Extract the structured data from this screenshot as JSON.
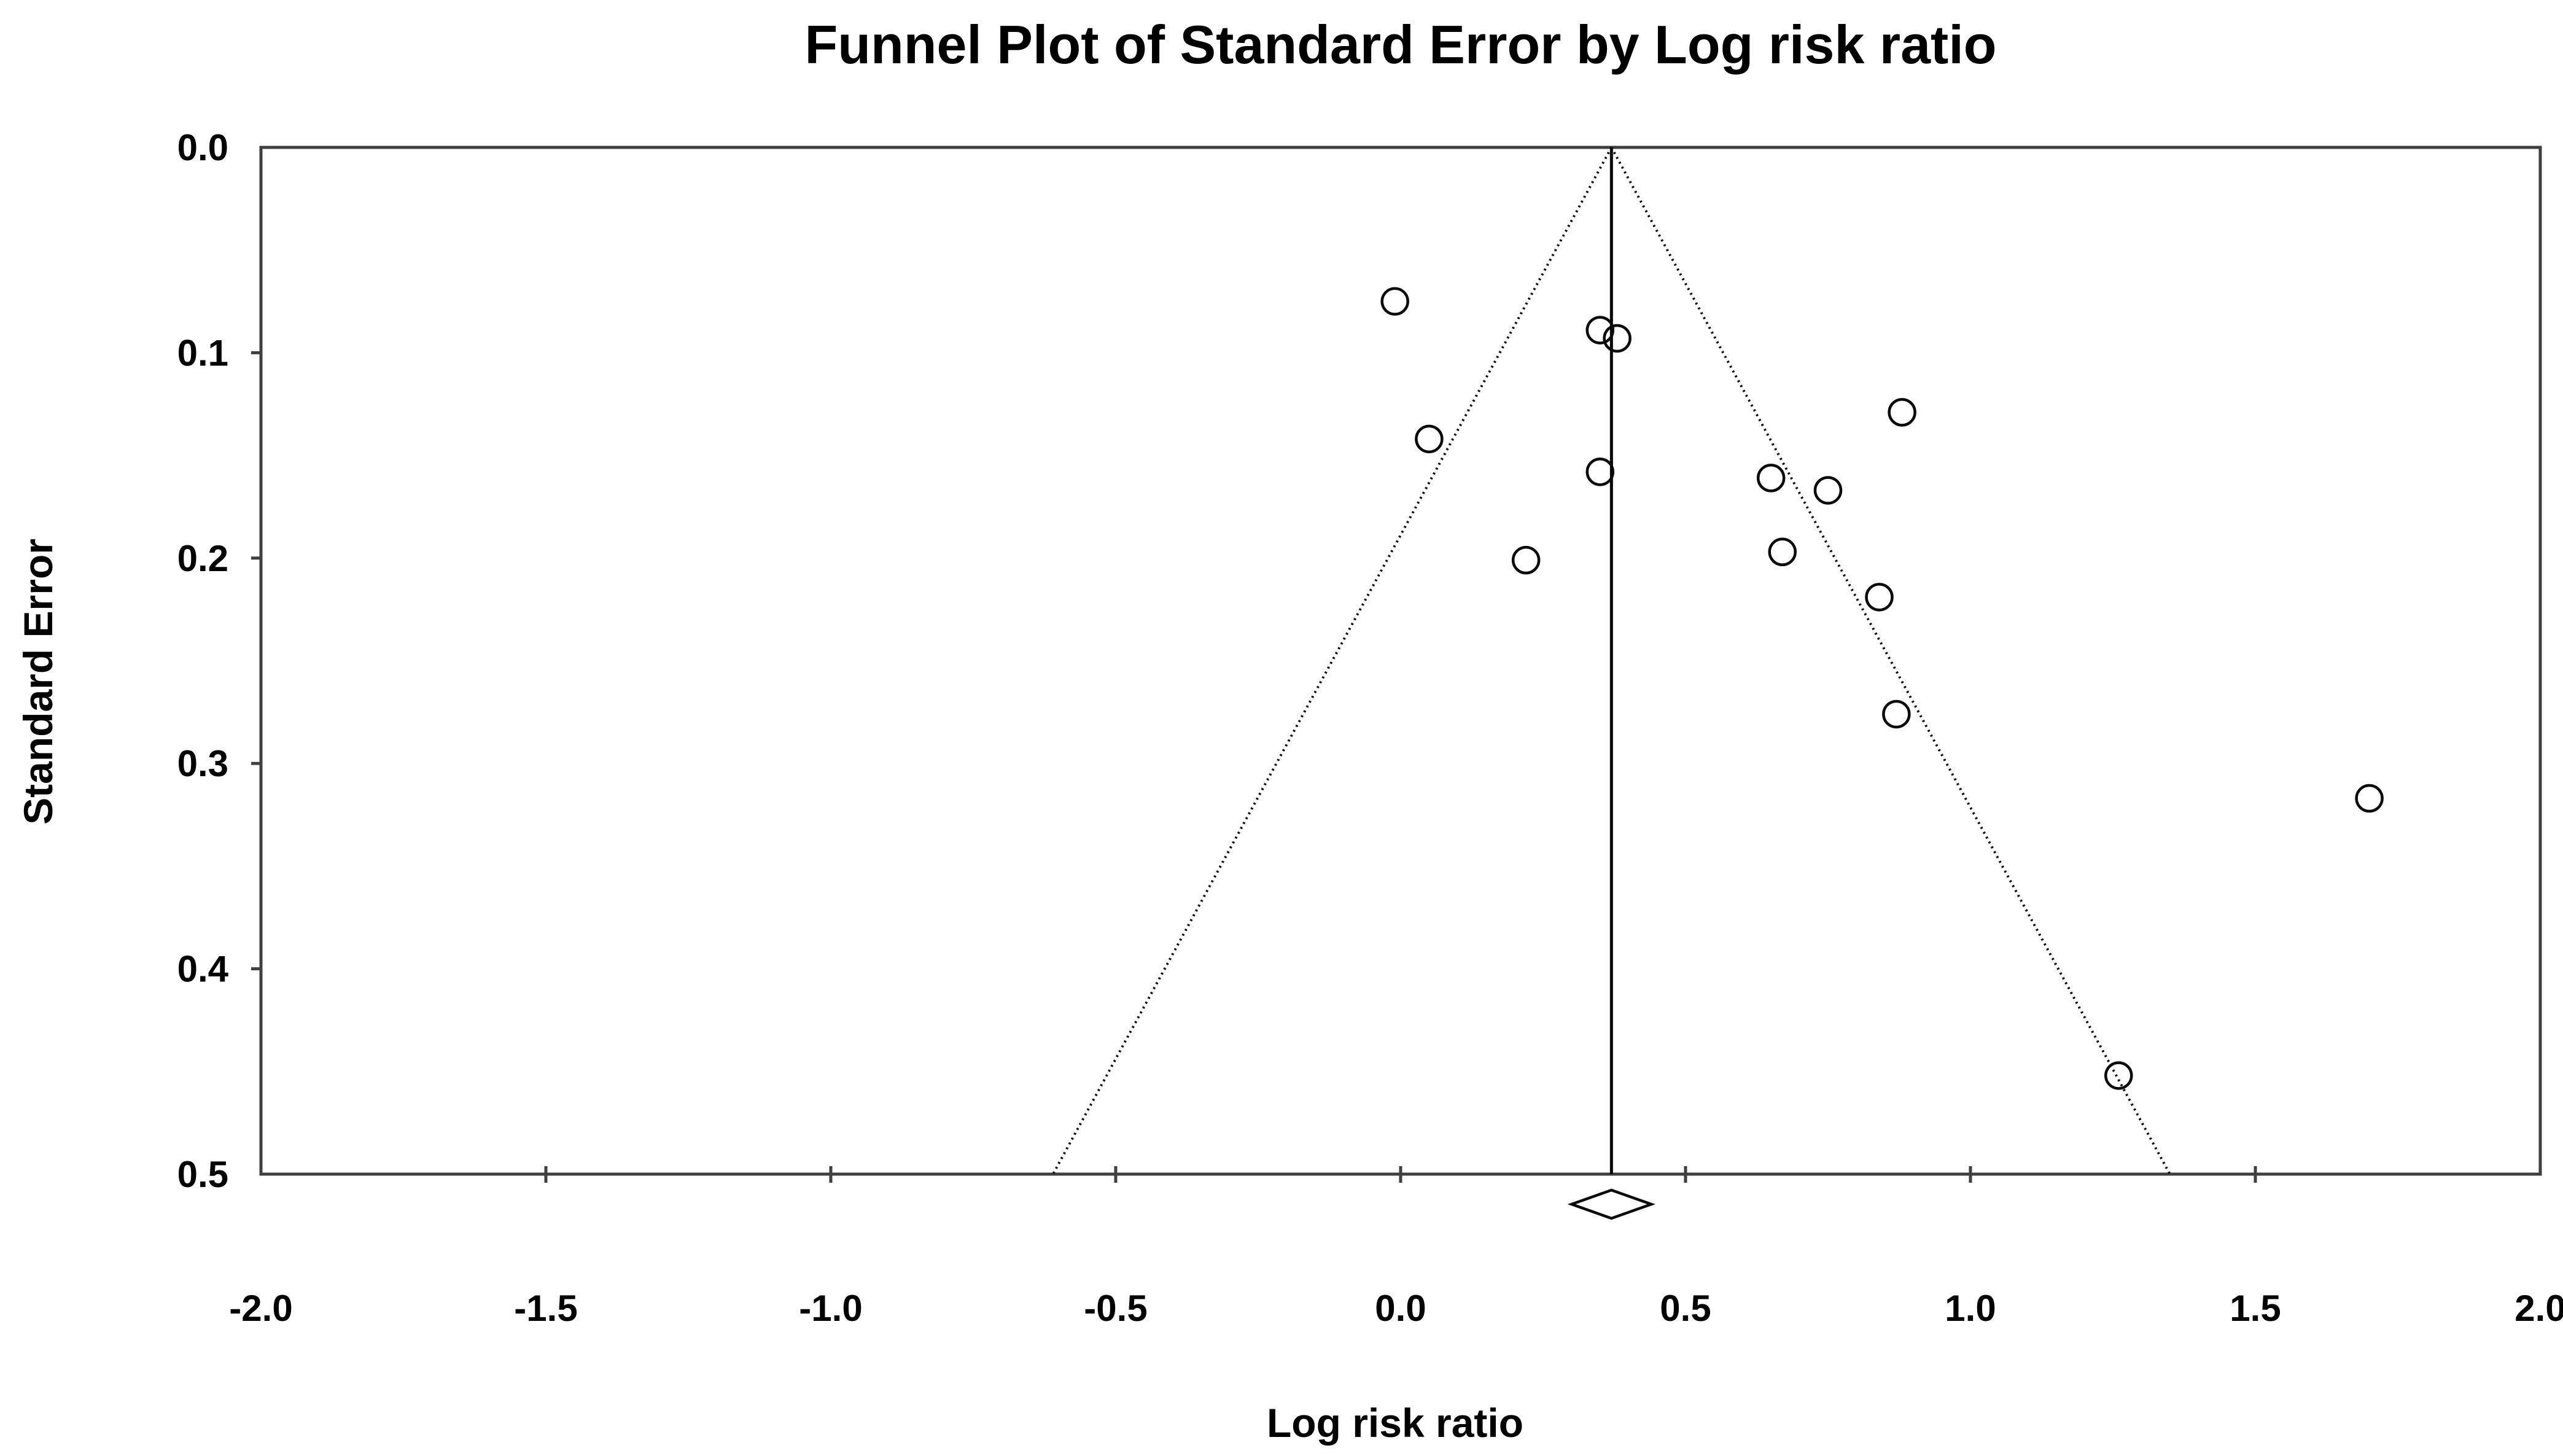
{
  "title": "Funnel Plot of Standard Error by Log risk ratio",
  "colors": {
    "background": "#ffffff",
    "frame": "#3f3f3f",
    "ink": "#0a0a0a"
  },
  "chart_data": {
    "type": "scatter",
    "subtype": "funnel-plot",
    "title": "Funnel Plot of Standard Error by Log risk ratio",
    "xlabel": "Log risk ratio",
    "ylabel": "Standard Error",
    "xlim": [
      -2.0,
      2.0
    ],
    "ylim": [
      0.0,
      0.5
    ],
    "y_inverted": true,
    "grid": false,
    "legend": false,
    "x_ticks": [
      -2.0,
      -1.5,
      -1.0,
      -0.5,
      0.0,
      0.5,
      1.0,
      1.5,
      2.0
    ],
    "y_ticks": [
      0.0,
      0.1,
      0.2,
      0.3,
      0.4,
      0.5
    ],
    "mean_log_risk_ratio": 0.37,
    "pseudo_ci_multiplier": 1.96,
    "points": [
      {
        "log_risk_ratio": -0.01,
        "standard_error": 0.075
      },
      {
        "log_risk_ratio": 0.35,
        "standard_error": 0.089
      },
      {
        "log_risk_ratio": 0.38,
        "standard_error": 0.093
      },
      {
        "log_risk_ratio": 0.88,
        "standard_error": 0.129
      },
      {
        "log_risk_ratio": 0.05,
        "standard_error": 0.142
      },
      {
        "log_risk_ratio": 0.35,
        "standard_error": 0.158
      },
      {
        "log_risk_ratio": 0.65,
        "standard_error": 0.161
      },
      {
        "log_risk_ratio": 0.75,
        "standard_error": 0.167
      },
      {
        "log_risk_ratio": 0.67,
        "standard_error": 0.197
      },
      {
        "log_risk_ratio": 0.22,
        "standard_error": 0.201
      },
      {
        "log_risk_ratio": 0.84,
        "standard_error": 0.219
      },
      {
        "log_risk_ratio": 0.87,
        "standard_error": 0.276
      },
      {
        "log_risk_ratio": 1.7,
        "standard_error": 0.317
      },
      {
        "log_risk_ratio": 1.26,
        "standard_error": 0.452
      }
    ],
    "summary_diamond": {
      "center": 0.37,
      "ci_low": 0.3,
      "ci_high": 0.44
    }
  }
}
